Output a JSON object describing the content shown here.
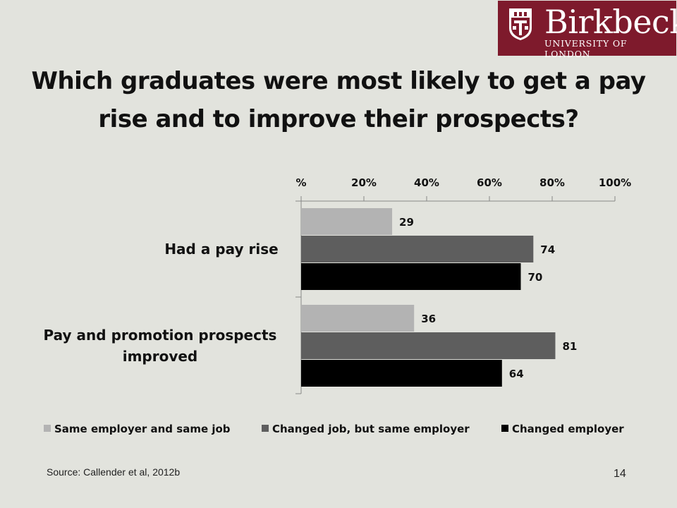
{
  "logo": {
    "name": "Birkbeck",
    "subtitle": "UNIVERSITY OF LONDON",
    "color": "#7e1a2c"
  },
  "slide": {
    "title": "Which graduates were most likely to get a pay rise and to improve their prospects?",
    "source": "Source: Callender et al, 2012b",
    "page_number": "14"
  },
  "chart_data": {
    "type": "bar",
    "orientation": "horizontal",
    "categories": [
      "Had a pay rise",
      "Pay and promotion prospects improved"
    ],
    "category_lines": [
      [
        "Had a pay rise"
      ],
      [
        "Pay and promotion prospects",
        "improved"
      ]
    ],
    "series": [
      {
        "name": "Same employer and same job",
        "values": [
          29,
          36
        ],
        "color": "#b3b3b3"
      },
      {
        "name": "Changed job, but same employer",
        "values": [
          74,
          81
        ],
        "color": "#5e5e5e"
      },
      {
        "name": "Changed employer",
        "values": [
          70,
          64
        ],
        "color": "#000000"
      }
    ],
    "x_ticks": [
      "%",
      "20%",
      "40%",
      "60%",
      "80%",
      "100%"
    ],
    "xlim": [
      0,
      100
    ],
    "x_axis_position": "top",
    "legend_position": "bottom",
    "grid": false,
    "data_labels": true
  }
}
